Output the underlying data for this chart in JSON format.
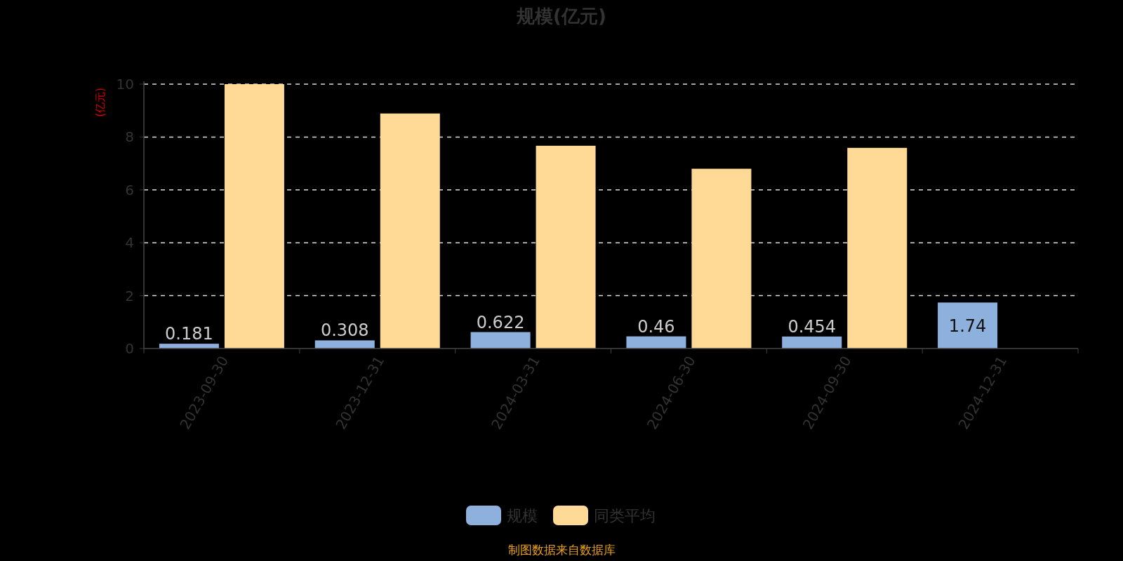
{
  "chart_data": {
    "type": "bar",
    "title": "规模(亿元)",
    "ylabel": "(亿元)",
    "categories": [
      "2023-09-30",
      "2023-12-31",
      "2024-03-31",
      "2024-06-30",
      "2024-09-30",
      "2024-12-31"
    ],
    "series": [
      {
        "name": "规模",
        "color": "#8eb0dd",
        "values": [
          0.181,
          0.308,
          0.622,
          0.46,
          0.454,
          1.74
        ],
        "value_labels": [
          "0.181",
          "0.308",
          "0.622",
          "0.46",
          "0.454",
          "1.74"
        ]
      },
      {
        "name": "同类平均",
        "color": "#ffd996",
        "values": [
          10.0,
          8.89,
          7.67,
          6.8,
          7.59,
          null
        ]
      }
    ],
    "ylim": [
      0,
      10
    ],
    "yticks": [
      0,
      2,
      4,
      6,
      8,
      10
    ],
    "grid": "y",
    "legend": "bottom",
    "annotations": [
      "制图数据来自数据库"
    ]
  }
}
